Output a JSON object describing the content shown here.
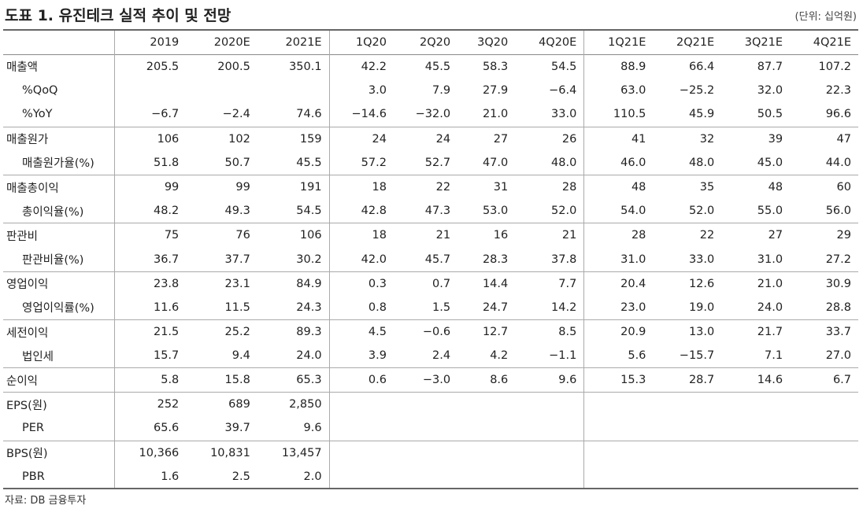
{
  "header": {
    "title": "도표 1. 유진테크 실적 추이 및 전망",
    "unit": "(단위: 십억원)"
  },
  "table": {
    "columns": [
      "2019",
      "2020E",
      "2021E",
      "1Q20",
      "2Q20",
      "3Q20",
      "4Q20E",
      "1Q21E",
      "2Q21E",
      "3Q21E",
      "4Q21E"
    ],
    "groups": [
      {
        "rows": [
          {
            "label": "매출액",
            "cells": [
              "205.5",
              "200.5",
              "350.1",
              "42.2",
              "45.5",
              "58.3",
              "54.5",
              "88.9",
              "66.4",
              "87.7",
              "107.2"
            ]
          },
          {
            "label": "%QoQ",
            "cells": [
              null,
              null,
              null,
              "3.0",
              "7.9",
              "27.9",
              "−6.4",
              "63.0",
              "−25.2",
              "32.0",
              "22.3"
            ]
          },
          {
            "label": "%YoY",
            "cells": [
              "−6.7",
              "−2.4",
              "74.6",
              "−14.6",
              "−32.0",
              "21.0",
              "33.0",
              "110.5",
              "45.9",
              "50.5",
              "96.6"
            ]
          }
        ]
      },
      {
        "rows": [
          {
            "label": "매출원가",
            "cells": [
              "106",
              "102",
              "159",
              "24",
              "24",
              "27",
              "26",
              "41",
              "32",
              "39",
              "47"
            ]
          },
          {
            "label": "매출원가율(%)",
            "cells": [
              "51.8",
              "50.7",
              "45.5",
              "57.2",
              "52.7",
              "47.0",
              "48.0",
              "46.0",
              "48.0",
              "45.0",
              "44.0"
            ]
          }
        ]
      },
      {
        "rows": [
          {
            "label": "매출총이익",
            "cells": [
              "99",
              "99",
              "191",
              "18",
              "22",
              "31",
              "28",
              "48",
              "35",
              "48",
              "60"
            ]
          },
          {
            "label": "총이익율(%)",
            "cells": [
              "48.2",
              "49.3",
              "54.5",
              "42.8",
              "47.3",
              "53.0",
              "52.0",
              "54.0",
              "52.0",
              "55.0",
              "56.0"
            ]
          }
        ]
      },
      {
        "rows": [
          {
            "label": "판관비",
            "cells": [
              "75",
              "76",
              "106",
              "18",
              "21",
              "16",
              "21",
              "28",
              "22",
              "27",
              "29"
            ]
          },
          {
            "label": "판관비율(%)",
            "cells": [
              "36.7",
              "37.7",
              "30.2",
              "42.0",
              "45.7",
              "28.3",
              "37.8",
              "31.0",
              "33.0",
              "31.0",
              "27.2"
            ]
          }
        ]
      },
      {
        "rows": [
          {
            "label": "영업이익",
            "cells": [
              "23.8",
              "23.1",
              "84.9",
              "0.3",
              "0.7",
              "14.4",
              "7.7",
              "20.4",
              "12.6",
              "21.0",
              "30.9"
            ]
          },
          {
            "label": "영업이익률(%)",
            "cells": [
              "11.6",
              "11.5",
              "24.3",
              "0.8",
              "1.5",
              "24.7",
              "14.2",
              "23.0",
              "19.0",
              "24.0",
              "28.8"
            ]
          }
        ]
      },
      {
        "rows": [
          {
            "label": "세전이익",
            "cells": [
              "21.5",
              "25.2",
              "89.3",
              "4.5",
              "−0.6",
              "12.7",
              "8.5",
              "20.9",
              "13.0",
              "21.7",
              "33.7"
            ]
          },
          {
            "label": "법인세",
            "cells": [
              "15.7",
              "9.4",
              "24.0",
              "3.9",
              "2.4",
              "4.2",
              "−1.1",
              "5.6",
              "−15.7",
              "7.1",
              "27.0"
            ]
          }
        ]
      },
      {
        "rows": [
          {
            "label": "순이익",
            "cells": [
              "5.8",
              "15.8",
              "65.3",
              "0.6",
              "−3.0",
              "8.6",
              "9.6",
              "15.3",
              "28.7",
              "14.6",
              "6.7"
            ]
          }
        ]
      },
      {
        "rows": [
          {
            "label": "EPS(원)",
            "cells": [
              "252",
              "689",
              "2,850",
              null,
              null,
              null,
              null,
              null,
              null,
              null,
              null
            ]
          },
          {
            "label": "PER",
            "cells": [
              "65.6",
              "39.7",
              "9.6",
              null,
              null,
              null,
              null,
              null,
              null,
              null,
              null
            ]
          }
        ]
      },
      {
        "rows": [
          {
            "label": "BPS(원)",
            "cells": [
              "10,366",
              "10,831",
              "13,457",
              null,
              null,
              null,
              null,
              null,
              null,
              null,
              null
            ]
          },
          {
            "label": "PBR",
            "cells": [
              "1.6",
              "2.5",
              "2.0",
              null,
              null,
              null,
              null,
              null,
              null,
              null,
              null
            ]
          }
        ]
      }
    ]
  },
  "source": "자료: DB 금융투자"
}
